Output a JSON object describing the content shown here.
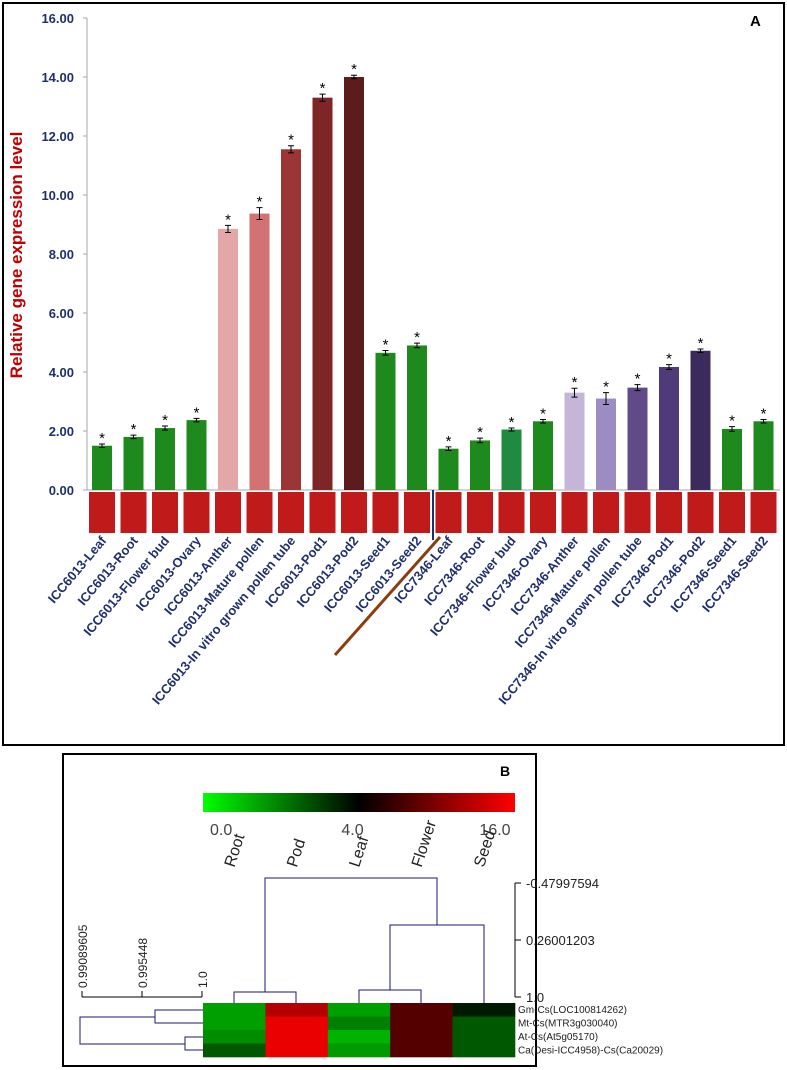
{
  "chart_data": [
    {
      "type": "bar",
      "panel_label": "A",
      "ylabel": "Relative gene expression level",
      "categories": [
        "ICC6013-Leaf",
        "ICC6013-Root",
        "ICC6013-Flower bud",
        "ICC6013-Ovary",
        "ICC6013-Anther",
        "ICC6013-Mature pollen",
        "ICC6013-In vitro grown pollen tube",
        "ICC6013-Pod1",
        "ICC6013-Pod2",
        "ICC6013-Seed1",
        "ICC6013-Seed2",
        "ICC7346-Leaf",
        "ICC7346-Root",
        "ICC7346-Flower bud",
        "ICC7346-Ovary",
        "ICC7346-Anther",
        "ICC7346-Mature pollen",
        "ICC7346-In vitro grown pollen tube",
        "ICC7346-Pod1",
        "ICC7346-Pod2",
        "ICC7346-Seed1",
        "ICC7346-Seed2"
      ],
      "values": [
        1.5,
        1.8,
        2.1,
        2.37,
        8.85,
        9.37,
        11.55,
        13.3,
        14.0,
        4.65,
        4.9,
        1.4,
        1.68,
        2.05,
        2.33,
        3.3,
        3.1,
        3.47,
        4.17,
        4.72,
        2.07,
        2.33
      ],
      "errors": [
        0.06,
        0.06,
        0.07,
        0.06,
        0.12,
        0.2,
        0.12,
        0.12,
        0.06,
        0.08,
        0.08,
        0.06,
        0.08,
        0.05,
        0.06,
        0.15,
        0.2,
        0.1,
        0.08,
        0.06,
        0.08,
        0.06
      ],
      "colors": [
        "#1e8a1e",
        "#1e8a1e",
        "#1e8a1e",
        "#1e8a1e",
        "#e3a7a7",
        "#d27272",
        "#9c3636",
        "#7e2626",
        "#5c1c1c",
        "#1e8a1e",
        "#1e8a1e",
        "#1e8a1e",
        "#1e8a1e",
        "#208a40",
        "#1e8a1e",
        "#c5b6d9",
        "#9d8cc2",
        "#604b88",
        "#4f3b79",
        "#3b2b5c",
        "#1e8a1e",
        "#1e8a1e"
      ],
      "annotation": "*",
      "ylim": [
        0,
        16
      ],
      "yticks": [
        {
          "value": 0,
          "label": "0.00"
        },
        {
          "value": 2,
          "label": "2.00"
        },
        {
          "value": 4,
          "label": "4.00"
        },
        {
          "value": 6,
          "label": "6.00"
        },
        {
          "value": 8,
          "label": "8.00"
        },
        {
          "value": 10,
          "label": "10.00"
        },
        {
          "value": 12,
          "label": "12.00"
        },
        {
          "value": 14,
          "label": "14.00"
        },
        {
          "value": 16,
          "label": "16.00"
        }
      ]
    },
    {
      "type": "heatmap",
      "panel_label": "B",
      "columns": [
        "Root",
        "Pod",
        "Leaf",
        "Flower",
        "Seed"
      ],
      "rows": [
        "Gm-Cs(LOC100814262)",
        "Mt-Cs(MTR3g030040)",
        "At-Cs(At5g05170)",
        "Ca(Desi-ICC4958)-Cs(Ca20029)"
      ],
      "values": [
        [
          1.5,
          12.5,
          1.5,
          8.0,
          3.6
        ],
        [
          1.5,
          15.0,
          2.0,
          8.0,
          2.6
        ],
        [
          1.8,
          15.0,
          1.2,
          8.0,
          2.6
        ],
        [
          2.6,
          15.0,
          1.6,
          8.0,
          2.6
        ]
      ],
      "colorbar_ticks": [
        {
          "value": 0,
          "label": "0.0"
        },
        {
          "value": 4,
          "label": "4.0"
        },
        {
          "value": 16,
          "label": "16.0"
        }
      ],
      "colorscale": [
        "#00ff00",
        "#000000",
        "#ff0000"
      ],
      "column_dendrogram_ticks": [
        -0.47997594,
        0.26001203,
        {
          "value": 1,
          "label": "1.0"
        }
      ],
      "row_dendrogram_ticks": [
        0.99089605,
        0.995448,
        {
          "value": 1,
          "label": "1.0"
        }
      ]
    }
  ]
}
